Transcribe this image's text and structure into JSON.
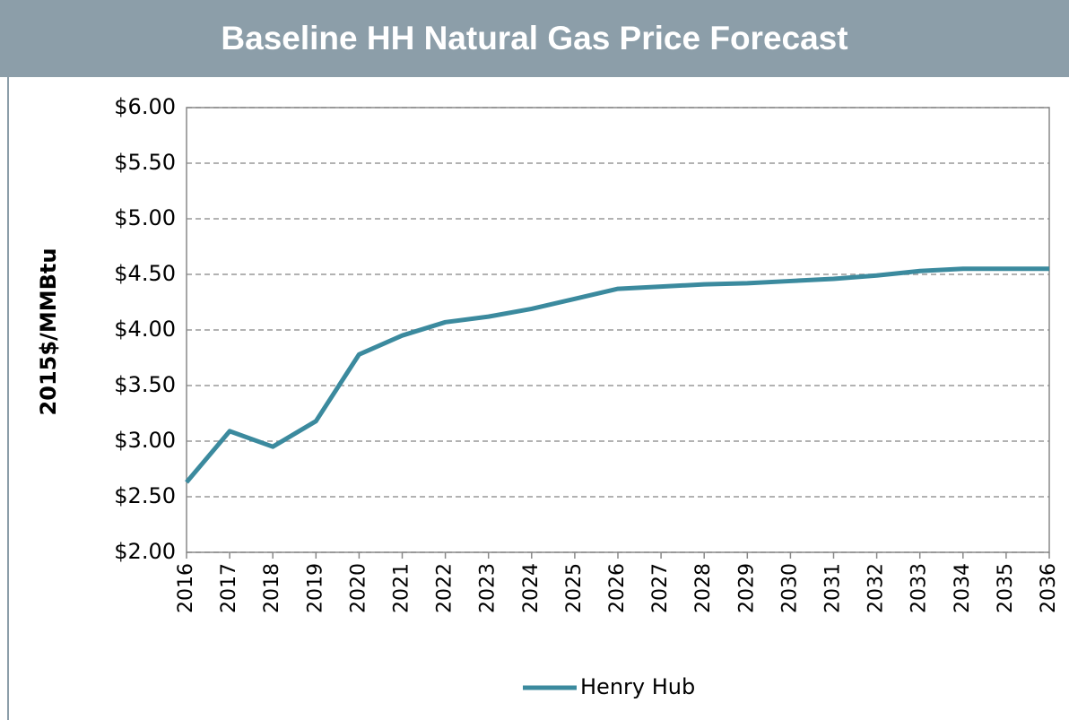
{
  "chart_data": {
    "type": "line",
    "title": "Baseline HH Natural Gas Price Forecast",
    "y_label": "2015$/MMBtu",
    "categories": [
      "2016",
      "2017",
      "2018",
      "2019",
      "2020",
      "2021",
      "2022",
      "2023",
      "2024",
      "2025",
      "2026",
      "2027",
      "2028",
      "2029",
      "2030",
      "2031",
      "2032",
      "2033",
      "2034",
      "2035",
      "2036"
    ],
    "series": [
      {
        "name": "Henry Hub",
        "color": "#3b8a9e",
        "values": [
          2.63,
          3.09,
          2.95,
          3.18,
          3.78,
          3.95,
          4.07,
          4.12,
          4.19,
          4.28,
          4.37,
          4.39,
          4.41,
          4.42,
          4.44,
          4.46,
          4.49,
          4.53,
          4.55,
          4.55,
          4.55
        ]
      }
    ],
    "ylim": [
      2,
      6
    ],
    "yticks": [
      {
        "value": 2,
        "label": "$2.00"
      },
      {
        "value": 2.5,
        "label": "$2.50"
      },
      {
        "value": 3,
        "label": "$3.00"
      },
      {
        "value": 3.5,
        "label": "$3.50"
      },
      {
        "value": 4,
        "label": "$4.00"
      },
      {
        "value": 4.5,
        "label": "$4.50"
      },
      {
        "value": 5,
        "label": "$5.00"
      },
      {
        "value": 5.5,
        "label": "$5.50"
      },
      {
        "value": 6,
        "label": "$6.00"
      }
    ],
    "grid": true,
    "legend": "bottom"
  }
}
